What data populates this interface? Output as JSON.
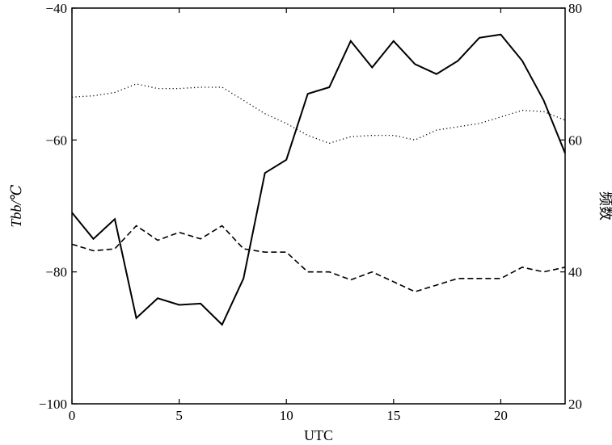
{
  "chart_data": {
    "type": "line",
    "xlabel": "UTC",
    "ylabel_left": "Tbb/℃",
    "ylabel_right": "频数",
    "xlim": [
      0,
      23
    ],
    "ylim_left": [
      -100,
      -40
    ],
    "ylim_right": [
      20,
      80
    ],
    "x_ticks": [
      0,
      5,
      10,
      15,
      20
    ],
    "y_ticks_left": [
      -100,
      -80,
      -60,
      -40
    ],
    "y_ticks_right": [
      20,
      40,
      60,
      80
    ],
    "grid": false,
    "x": [
      0,
      1,
      2,
      3,
      4,
      5,
      6,
      7,
      8,
      9,
      10,
      11,
      12,
      13,
      14,
      15,
      16,
      17,
      18,
      19,
      20,
      21,
      22,
      23
    ],
    "series": [
      {
        "axis": "right",
        "style": "solid",
        "color": "#000000",
        "values": [
          49,
          45,
          48,
          33,
          36,
          35,
          35.2,
          32,
          39,
          55,
          57,
          67,
          68,
          75,
          71,
          75,
          71.5,
          70,
          72,
          75.5,
          76,
          72,
          66,
          58
        ]
      },
      {
        "axis": "left",
        "style": "dotted",
        "color": "#000000",
        "values": [
          -53.5,
          -53.3,
          -52.8,
          -51.5,
          -52.2,
          -52.2,
          -52,
          -52,
          -54,
          -56,
          -57.5,
          -59.3,
          -60.5,
          -59.5,
          -59.3,
          -59.3,
          -60,
          -58.5,
          -58,
          -57.5,
          -56.5,
          -55.5,
          -55.7,
          -57
        ]
      },
      {
        "axis": "left",
        "style": "dashed",
        "color": "#000000",
        "values": [
          -75.8,
          -76.8,
          -76.5,
          -73,
          -75.2,
          -74,
          -75,
          -73,
          -76.5,
          -77,
          -77,
          -80,
          -80,
          -81.2,
          -80,
          -81.5,
          -83,
          -82,
          -81,
          -81,
          -81,
          -79.3,
          -80,
          -79.3
        ]
      }
    ]
  }
}
